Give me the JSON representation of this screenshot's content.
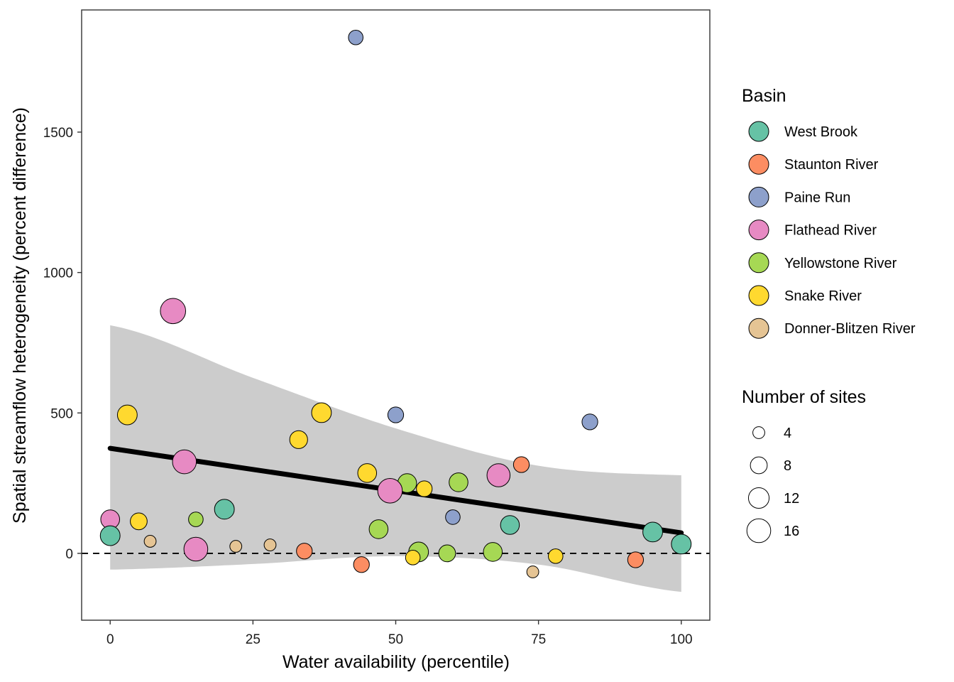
{
  "chart_data": {
    "type": "scatter",
    "title": "",
    "xlabel": "Water availability (percentile)",
    "ylabel": "Spatial streamflow heterogeneity (percent difference)",
    "xlim": [
      -5,
      105
    ],
    "ylim": [
      -238,
      1935
    ],
    "xticks": [
      0,
      25,
      50,
      75,
      100
    ],
    "yticks": [
      0,
      500,
      1000,
      1500
    ],
    "grid": false,
    "reference_line": {
      "y": 0,
      "style": "dashed"
    },
    "fit_line": {
      "x": [
        0,
        100
      ],
      "y": [
        374,
        73
      ]
    },
    "confidence_band": {
      "x": [
        0,
        25,
        50,
        75,
        100
      ],
      "upper": [
        812,
        625,
        445,
        312,
        278
      ],
      "lower": [
        -58,
        -38,
        -10,
        -40,
        -137
      ]
    },
    "legend_placement": "right",
    "basin_legend": {
      "title": "Basin",
      "entries": [
        {
          "name": "West Brook",
          "color": "#66c2a5"
        },
        {
          "name": "Staunton River",
          "color": "#fc8d62"
        },
        {
          "name": "Paine Run",
          "color": "#8da0cb"
        },
        {
          "name": "Flathead River",
          "color": "#e78ac3"
        },
        {
          "name": "Yellowstone River",
          "color": "#a6d854"
        },
        {
          "name": "Snake River",
          "color": "#ffd92f"
        },
        {
          "name": "Donner-Blitzen River",
          "color": "#e5c494"
        }
      ]
    },
    "size_legend": {
      "title": "Number of sites",
      "entries": [
        4,
        8,
        12,
        16
      ]
    },
    "points": [
      {
        "basin": "Paine Run",
        "x": 43,
        "y": 1837,
        "sites": 6
      },
      {
        "basin": "Flathead River",
        "x": 11,
        "y": 863,
        "sites": 18
      },
      {
        "basin": "Snake River",
        "x": 3,
        "y": 493,
        "sites": 11
      },
      {
        "basin": "Snake River",
        "x": 37,
        "y": 501,
        "sites": 11
      },
      {
        "basin": "Paine Run",
        "x": 50,
        "y": 493,
        "sites": 7
      },
      {
        "basin": "Paine Run",
        "x": 84,
        "y": 468,
        "sites": 7
      },
      {
        "basin": "Snake River",
        "x": 33,
        "y": 405,
        "sites": 9
      },
      {
        "basin": "Flathead River",
        "x": 13,
        "y": 326,
        "sites": 16
      },
      {
        "basin": "Staunton River",
        "x": 72,
        "y": 316,
        "sites": 7
      },
      {
        "basin": "Snake River",
        "x": 45,
        "y": 286,
        "sites": 10
      },
      {
        "basin": "Flathead River",
        "x": 68,
        "y": 278,
        "sites": 15
      },
      {
        "basin": "Yellowstone River",
        "x": 61,
        "y": 253,
        "sites": 10
      },
      {
        "basin": "Yellowstone River",
        "x": 52,
        "y": 250,
        "sites": 10
      },
      {
        "basin": "Snake River",
        "x": 55,
        "y": 230,
        "sites": 7
      },
      {
        "basin": "Flathead River",
        "x": 49,
        "y": 223,
        "sites": 17
      },
      {
        "basin": "West Brook",
        "x": 20,
        "y": 157,
        "sites": 11
      },
      {
        "basin": "Paine Run",
        "x": 60,
        "y": 129,
        "sites": 6
      },
      {
        "basin": "Flathead River",
        "x": 0,
        "y": 121,
        "sites": 10
      },
      {
        "basin": "Yellowstone River",
        "x": 15,
        "y": 121,
        "sites": 6
      },
      {
        "basin": "Snake River",
        "x": 5,
        "y": 114,
        "sites": 8
      },
      {
        "basin": "West Brook",
        "x": 70,
        "y": 101,
        "sites": 10
      },
      {
        "basin": "Yellowstone River",
        "x": 47,
        "y": 86,
        "sites": 10
      },
      {
        "basin": "West Brook",
        "x": 95,
        "y": 76,
        "sites": 11
      },
      {
        "basin": "West Brook",
        "x": 0,
        "y": 63,
        "sites": 11
      },
      {
        "basin": "Donner-Blitzen River",
        "x": 7,
        "y": 43,
        "sites": 4
      },
      {
        "basin": "West Brook",
        "x": 100,
        "y": 33,
        "sites": 11
      },
      {
        "basin": "Donner-Blitzen River",
        "x": 28,
        "y": 30,
        "sites": 4
      },
      {
        "basin": "Donner-Blitzen River",
        "x": 22,
        "y": 25,
        "sites": 4
      },
      {
        "basin": "Flathead River",
        "x": 15,
        "y": 15,
        "sites": 16
      },
      {
        "basin": "Staunton River",
        "x": 34,
        "y": 8,
        "sites": 7
      },
      {
        "basin": "Yellowstone River",
        "x": 54,
        "y": 5,
        "sites": 11
      },
      {
        "basin": "Yellowstone River",
        "x": 67,
        "y": 5,
        "sites": 10
      },
      {
        "basin": "Yellowstone River",
        "x": 59,
        "y": 0,
        "sites": 8
      },
      {
        "basin": "Snake River",
        "x": 78,
        "y": -10,
        "sites": 6
      },
      {
        "basin": "Snake River",
        "x": 53,
        "y": -15,
        "sites": 6
      },
      {
        "basin": "Staunton River",
        "x": 92,
        "y": -23,
        "sites": 7
      },
      {
        "basin": "Staunton River",
        "x": 44,
        "y": -40,
        "sites": 7
      },
      {
        "basin": "Donner-Blitzen River",
        "x": 74,
        "y": -66,
        "sites": 4
      }
    ]
  }
}
